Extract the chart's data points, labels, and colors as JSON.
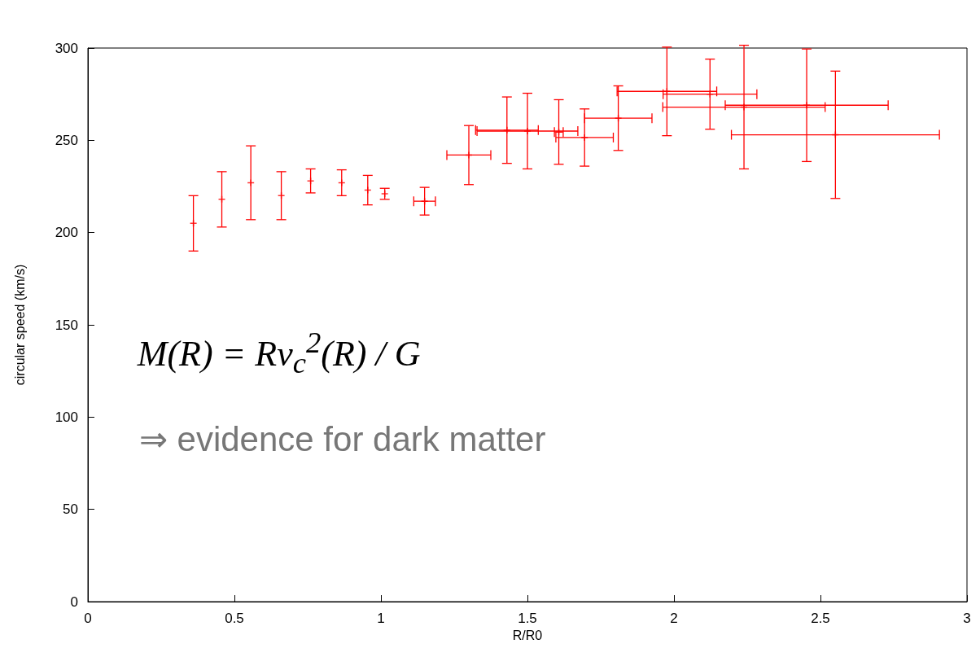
{
  "chart_data": {
    "type": "scatter",
    "xlabel": "R/R0",
    "ylabel": "circular speed (km/s)",
    "x": [
      0.36,
      0.457,
      0.556,
      0.66,
      0.76,
      0.866,
      0.955,
      1.013,
      1.149,
      1.3,
      1.43,
      1.5,
      1.607,
      1.695,
      1.81,
      1.976,
      2.123,
      2.239,
      2.453,
      2.551
    ],
    "values": [
      205,
      218,
      227,
      220,
      228,
      227,
      223,
      221,
      217,
      242,
      255.5,
      255,
      254.5,
      251.5,
      262,
      276.5,
      275,
      268,
      269,
      253
    ],
    "errors": [
      15,
      15,
      20,
      13,
      6.5,
      7,
      8,
      3,
      7.5,
      16,
      18,
      20.5,
      17.5,
      15.5,
      17.5,
      24,
      19,
      33.5,
      30.5,
      34.5
    ],
    "xerrors": [
      null,
      null,
      null,
      null,
      null,
      null,
      null,
      null,
      0.037,
      0.075,
      0.107,
      0.172,
      0.015,
      0.098,
      0.115,
      0.17,
      0.16,
      0.277,
      0.278,
      0.355
    ],
    "color": "#ff0000",
    "marker": "cross",
    "xlim": [
      0,
      3
    ],
    "xticks": [
      0,
      0.5,
      1,
      1.5,
      2,
      2.5,
      3
    ],
    "ylim": [
      0,
      300
    ],
    "yticks": [
      0,
      50,
      100,
      150,
      200,
      250,
      300
    ],
    "grid": false,
    "annotations": [
      "M(R) = Rv$_{c}$$^{2}$(R) / G",
      "⇒ evidence for dark matter"
    ]
  }
}
